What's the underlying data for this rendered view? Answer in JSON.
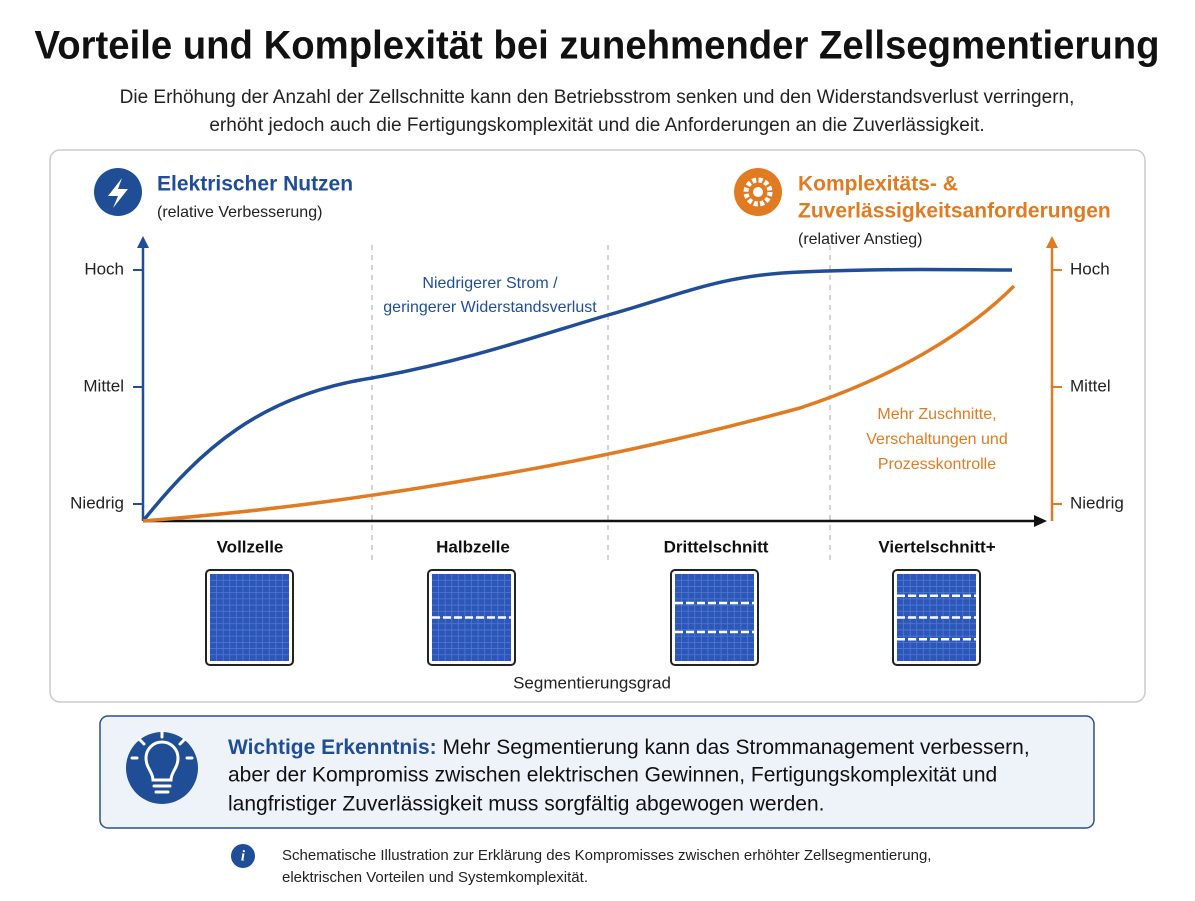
{
  "header": {
    "title": "Vorteile und Komplexität bei zunehmender Zellsegmentierung",
    "subtitle_lines": [
      "Die Erhöhung der Anzahl der Zellschnitte kann den Betriebsstrom senken und den Widerstandsverlust verringern,",
      "erhöht jedoch auch die Fertigungskomplexität und die Anforderungen an die Zuverlässigkeit."
    ]
  },
  "chart": {
    "left_axis": {
      "title": "Elektrischer Nutzen",
      "subtitle": "(relative Verbesserung)",
      "levels": [
        "Hoch",
        "Mittel",
        "Niedrig"
      ]
    },
    "right_axis": {
      "title_lines": [
        "Komplexitäts- &",
        "Zuverlässigkeitsanforderungen"
      ],
      "subtitle": "(relativer Anstieg)",
      "levels": [
        "Hoch",
        "Mittel",
        "Niedrig"
      ]
    },
    "blue_annotation": [
      "Niedrigerer Strom /",
      "geringerer Widerstandsverlust"
    ],
    "orange_annotation": [
      "Mehr Zuschnitte,",
      "Verschaltungen und",
      "Prozesskontrolle"
    ],
    "categories": [
      "Vollzelle",
      "Halbzelle",
      "Drittelschnitt",
      "Viertelschnitt+"
    ],
    "x_axis_label": "Segmentierungsgrad"
  },
  "insight": {
    "label": "Wichtige Erkenntnis:",
    "text_lines": [
      "Mehr Segmentierung kann das Strommanagement verbessern,",
      "aber der Kompromiss zwischen elektrischen Gewinnen, Fertigungskomplexität und",
      "langfristiger Zuverlässigkeit muss sorgfältig abgewogen werden."
    ]
  },
  "footnote": {
    "lines": [
      "Schematische Illustration zur Erklärung des Kompromisses zwischen erhöhter Zellsegmentierung,",
      "elektrischen Vorteilen und Systemkomplexität."
    ]
  }
}
